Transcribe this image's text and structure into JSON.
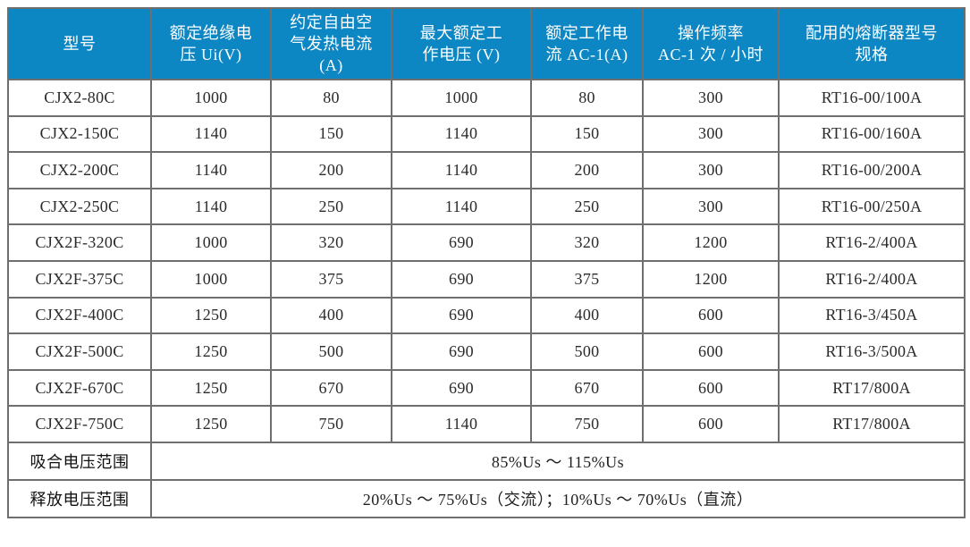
{
  "colors": {
    "header_bg": "#0d87c4",
    "header_text": "#ffffff",
    "border": "#6f6f6f",
    "cell_text": "#2b2b2b"
  },
  "table": {
    "headers": [
      "型号",
      "额定绝缘电\n压 Ui(V)",
      "约定自由空\n气发热电流\n(A)",
      "最大额定工\n作电压 (V)",
      "额定工作电\n流 AC-1(A)",
      "操作频率\nAC-1 次 / 小时",
      "配用的熔断器型号\n规格"
    ],
    "rows": [
      [
        "CJX2-80C",
        "1000",
        "80",
        "1000",
        "80",
        "300",
        "RT16-00/100A"
      ],
      [
        "CJX2-150C",
        "1140",
        "150",
        "1140",
        "150",
        "300",
        "RT16-00/160A"
      ],
      [
        "CJX2-200C",
        "1140",
        "200",
        "1140",
        "200",
        "300",
        "RT16-00/200A"
      ],
      [
        "CJX2-250C",
        "1140",
        "250",
        "1140",
        "250",
        "300",
        "RT16-00/250A"
      ],
      [
        "CJX2F-320C",
        "1000",
        "320",
        "690",
        "320",
        "1200",
        "RT16-2/400A"
      ],
      [
        "CJX2F-375C",
        "1000",
        "375",
        "690",
        "375",
        "1200",
        "RT16-2/400A"
      ],
      [
        "CJX2F-400C",
        "1250",
        "400",
        "690",
        "400",
        "600",
        "RT16-3/450A"
      ],
      [
        "CJX2F-500C",
        "1250",
        "500",
        "690",
        "500",
        "600",
        "RT16-3/500A"
      ],
      [
        "CJX2F-670C",
        "1250",
        "670",
        "690",
        "670",
        "600",
        "RT17/800A"
      ],
      [
        "CJX2F-750C",
        "1250",
        "750",
        "1140",
        "750",
        "600",
        "RT17/800A"
      ]
    ],
    "footer_rows": [
      {
        "label": "吸合电压范围",
        "value": "85%Us ～ 115%Us"
      },
      {
        "label": "释放电压范围",
        "value": "20%Us ～ 75%Us（交流）；10%Us ～ 70%Us（直流）"
      }
    ]
  }
}
